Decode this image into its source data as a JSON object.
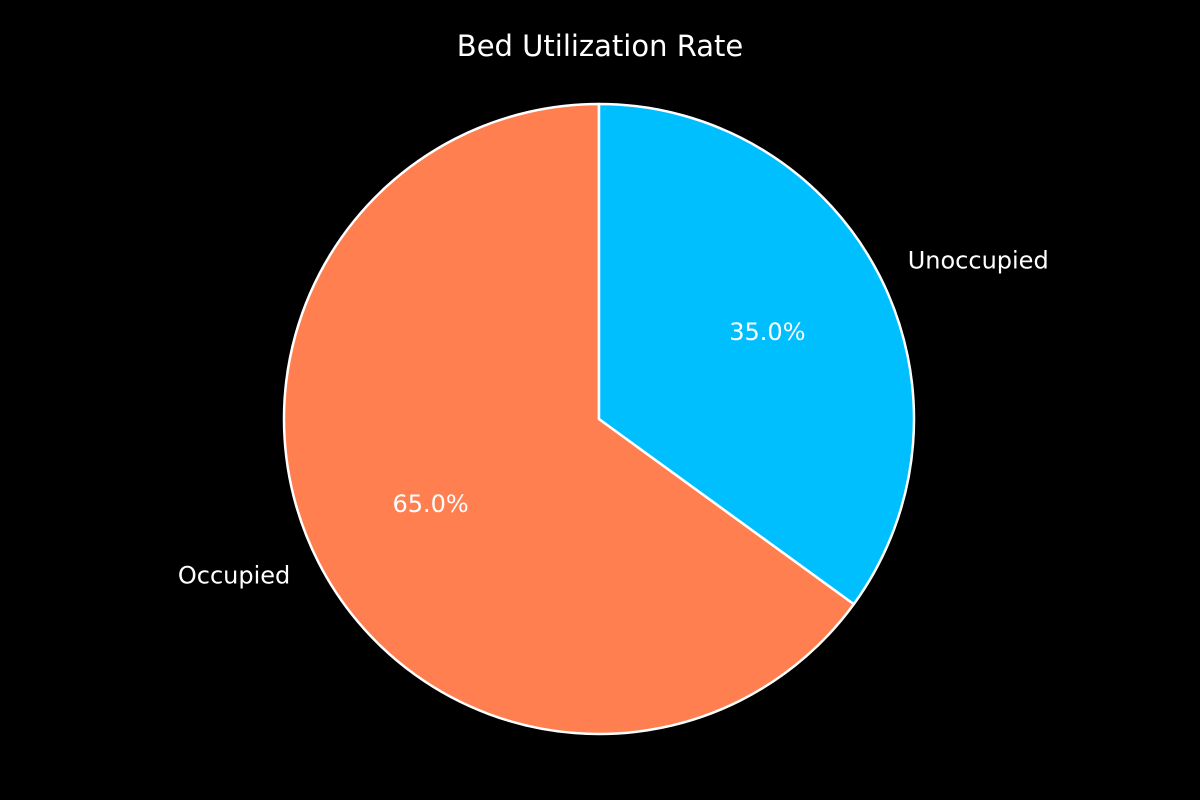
{
  "chart_data": {
    "type": "pie",
    "title": "Bed Utilization Rate",
    "slices": [
      {
        "label": "Occupied",
        "value": 65.0,
        "pct_label": "65.0%",
        "color": "#FF7F50"
      },
      {
        "label": "Unoccupied",
        "value": 35.0,
        "pct_label": "35.0%",
        "color": "#00BFFF"
      }
    ],
    "edge_color": "#FFFFFF",
    "background": "#000000",
    "legend": "none"
  }
}
